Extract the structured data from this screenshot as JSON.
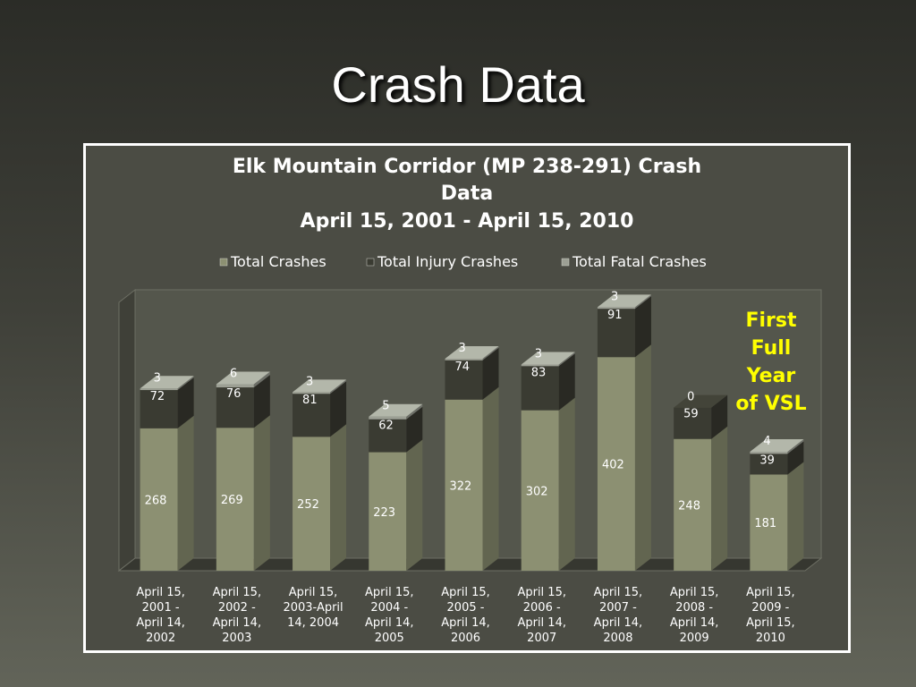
{
  "slide": {
    "title": "Crash Data"
  },
  "chart_data": {
    "type": "bar",
    "stacked": true,
    "title_lines": [
      "Elk Mountain Corridor (MP 238-291) Crash",
      "Data",
      "April 15, 2001 - April 15, 2010"
    ],
    "categories": [
      [
        "April 15,",
        "2001 -",
        "April 14,",
        "2002"
      ],
      [
        "April 15,",
        "2002 -",
        "April 14,",
        "2003"
      ],
      [
        "April 15,",
        "2003-April",
        "14, 2004"
      ],
      [
        "April 15,",
        "2004 -",
        "April 14,",
        "2005"
      ],
      [
        "April 15,",
        "2005 -",
        "April 14,",
        "2006"
      ],
      [
        "April 15,",
        "2006 -",
        "April 14,",
        "2007"
      ],
      [
        "April 15,",
        "2007 -",
        "April 14,",
        "2008"
      ],
      [
        "April 15,",
        "2008 -",
        "April 14,",
        "2009"
      ],
      [
        "April 15,",
        "2009 -",
        "April 15,",
        "2010"
      ]
    ],
    "series": [
      {
        "name": "Total Crashes",
        "values": [
          268,
          269,
          252,
          223,
          322,
          302,
          402,
          248,
          181
        ],
        "color": "#8c9072"
      },
      {
        "name": "Total Injury Crashes",
        "values": [
          72,
          76,
          81,
          62,
          74,
          83,
          91,
          59,
          39
        ],
        "color": "#3a3b32"
      },
      {
        "name": "Total Fatal Crashes",
        "values": [
          3,
          6,
          3,
          5,
          3,
          3,
          3,
          0,
          4
        ],
        "color": "#9c9f94"
      }
    ],
    "legend_position": "top",
    "grid": false,
    "three_d": true,
    "annotation": {
      "lines": [
        "First",
        "Full",
        "Year",
        "of VSL"
      ],
      "color": "#ffff00"
    },
    "colors": {
      "wall": "#54564c",
      "floor": "#363730",
      "text": "#ffffff",
      "frame": "#ffffff"
    }
  }
}
